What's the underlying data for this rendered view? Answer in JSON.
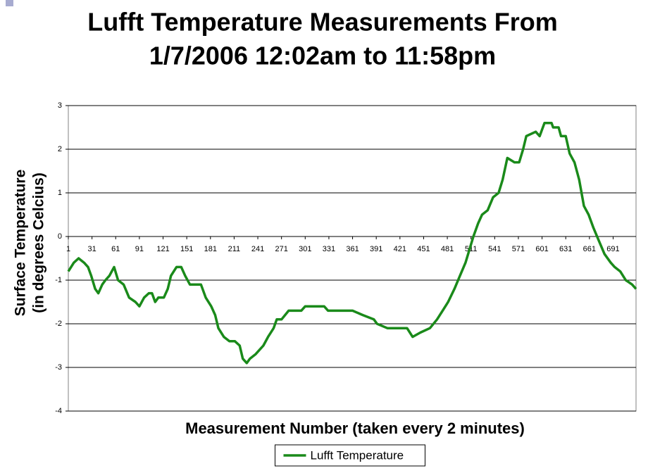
{
  "chart_data": {
    "type": "line",
    "title": [
      "Lufft Temperature Measurements From",
      "1/7/2006 12:02am to 11:58pm"
    ],
    "x_label": "Measurement Number (taken every 2 minutes)",
    "y_label": [
      "Surface Temperature",
      "(in degrees Celcius)"
    ],
    "xlim": [
      1,
      720
    ],
    "xticks": [
      1,
      31,
      61,
      91,
      121,
      151,
      181,
      211,
      241,
      271,
      301,
      331,
      361,
      391,
      421,
      451,
      481,
      511,
      541,
      571,
      601,
      631,
      661,
      691
    ],
    "ylim": [
      -4,
      3
    ],
    "yticks": [
      -4,
      -3,
      -2,
      -1,
      0,
      1,
      2,
      3
    ],
    "grid": true,
    "legend": "bottom",
    "series": [
      {
        "name": "Lufft Temperature",
        "color": "#1a8a1a",
        "x": [
          1,
          8,
          14,
          21,
          26,
          30,
          35,
          39,
          44,
          48,
          53,
          59,
          64,
          71,
          78,
          86,
          91,
          97,
          103,
          107,
          111,
          115,
          122,
          127,
          131,
          138,
          144,
          149,
          155,
          169,
          175,
          182,
          187,
          191,
          198,
          205,
          212,
          218,
          222,
          227,
          231,
          238,
          243,
          248,
          254,
          261,
          265,
          271,
          280,
          296,
          301,
          325,
          330,
          361,
          374,
          388,
          392,
          405,
          430,
          437,
          447,
          459,
          468,
          475,
          482,
          490,
          497,
          504,
          509,
          514,
          520,
          525,
          532,
          539,
          546,
          551,
          557,
          566,
          572,
          577,
          581,
          593,
          598,
          604,
          613,
          615,
          622,
          625,
          631,
          636,
          642,
          648,
          654,
          660,
          666,
          673,
          680,
          688,
          693,
          700,
          707,
          715,
          720
        ],
        "values": [
          -0.8,
          -0.6,
          -0.5,
          -0.6,
          -0.7,
          -0.9,
          -1.2,
          -1.3,
          -1.1,
          -1.0,
          -0.9,
          -0.7,
          -1.0,
          -1.1,
          -1.4,
          -1.5,
          -1.6,
          -1.4,
          -1.3,
          -1.3,
          -1.5,
          -1.4,
          -1.4,
          -1.2,
          -0.9,
          -0.7,
          -0.7,
          -0.9,
          -1.1,
          -1.1,
          -1.4,
          -1.6,
          -1.8,
          -2.1,
          -2.3,
          -2.4,
          -2.4,
          -2.5,
          -2.8,
          -2.9,
          -2.8,
          -2.7,
          -2.6,
          -2.5,
          -2.3,
          -2.1,
          -1.9,
          -1.9,
          -1.7,
          -1.7,
          -1.6,
          -1.6,
          -1.7,
          -1.7,
          -1.8,
          -1.9,
          -2.0,
          -2.1,
          -2.1,
          -2.3,
          -2.2,
          -2.1,
          -1.9,
          -1.7,
          -1.5,
          -1.2,
          -0.9,
          -0.6,
          -0.3,
          0.0,
          0.3,
          0.5,
          0.6,
          0.9,
          1.0,
          1.3,
          1.8,
          1.7,
          1.7,
          2.0,
          2.3,
          2.4,
          2.3,
          2.6,
          2.6,
          2.5,
          2.5,
          2.3,
          2.3,
          1.9,
          1.7,
          1.3,
          0.7,
          0.5,
          0.2,
          -0.1,
          -0.4,
          -0.6,
          -0.7,
          -0.8,
          -1.0,
          -1.1,
          -1.2
        ]
      }
    ]
  }
}
